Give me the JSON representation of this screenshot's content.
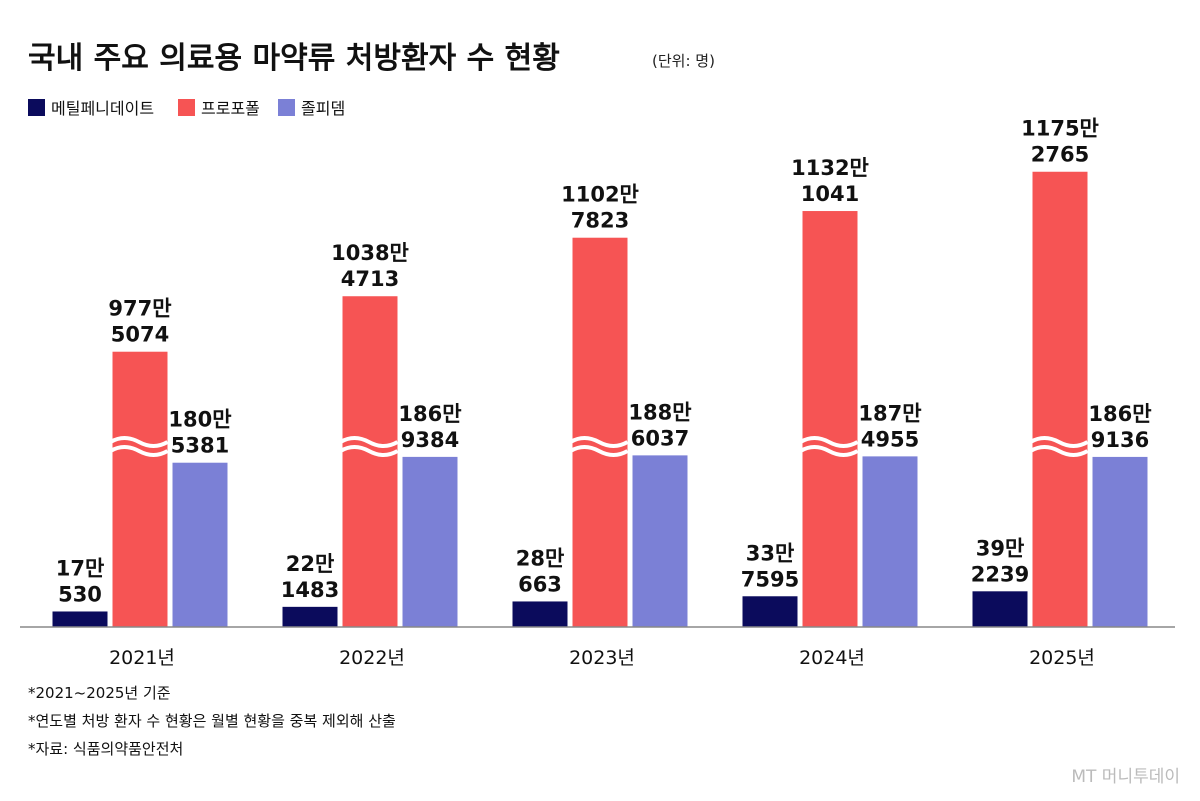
{
  "chart_data": {
    "type": "bar",
    "title": "국내 주요 의료용 마약류 처방환자 수 현황",
    "subtitle": "(단위: 명)",
    "categories": [
      "2021년",
      "2022년",
      "2023년",
      "2024년",
      "2025년"
    ],
    "series": [
      {
        "name": "메틸페니데이트",
        "color": "#0b0b5c",
        "values": [
          170530,
          221483,
          280663,
          337595,
          392239
        ],
        "value_labels": [
          "17만\n530",
          "22만\n1483",
          "28만\n663",
          "33만\n7595",
          "39만\n2239"
        ]
      },
      {
        "name": "프로포폴",
        "color": "#f65454",
        "values": [
          9775074,
          10384713,
          11027823,
          11321041,
          11752765
        ],
        "value_labels": [
          "977만\n5074",
          "1038만\n4713",
          "1102만\n7823",
          "1132만\n1041",
          "1175만\n2765"
        ]
      },
      {
        "name": "졸피뎀",
        "color": "#7b80d6",
        "values": [
          1805381,
          1869384,
          1886037,
          1874955,
          1869136
        ],
        "value_labels": [
          "180만\n5381",
          "186만\n9384",
          "188만\n6037",
          "187만\n4955",
          "186만\n9136"
        ]
      }
    ],
    "notes": [
      "*2021~2025년 기준",
      "*연도별 처방 환자 수 현황은 월별 현황을 중복 제외해 산출",
      "*자료: 식품의약품안전처"
    ],
    "source_logo": "MT 머니투데이"
  }
}
